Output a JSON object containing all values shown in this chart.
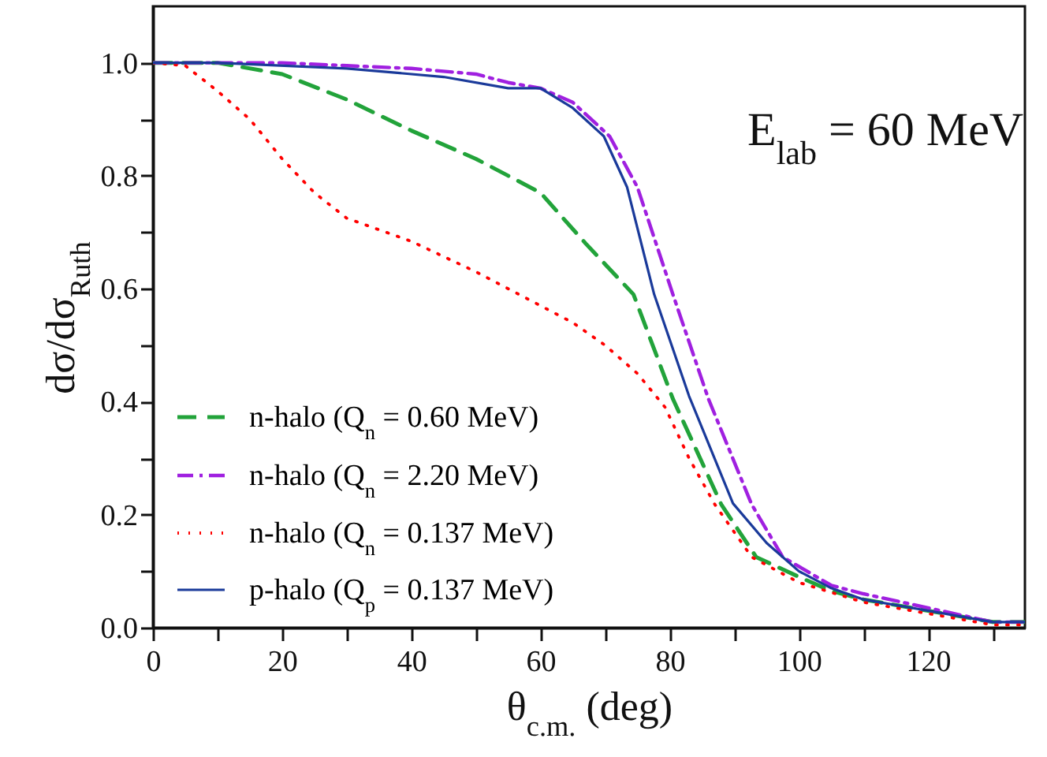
{
  "chart_data": {
    "type": "line",
    "xlabel": "θ$_{c.m.}$ (deg)",
    "ylabel": "dσ/dσ$_{Ruth}$",
    "annotations": [
      "E$_{lab}$ = 60 MeV"
    ],
    "xlim": [
      0,
      135
    ],
    "ylim": [
      0,
      1.1
    ],
    "xticks": [
      0,
      {
        "value": 10,
        "label": null
      },
      20,
      {
        "value": 30,
        "label": null
      },
      40,
      {
        "value": 50,
        "label": null
      },
      60,
      {
        "value": 70,
        "label": null
      },
      80,
      {
        "value": 90,
        "label": null
      },
      100,
      {
        "value": 110,
        "label": null
      },
      120,
      {
        "value": 130,
        "label": null
      }
    ],
    "yticks": [
      {
        "value": 0,
        "label": "0.0"
      },
      {
        "value": 0.1,
        "label": null
      },
      0.2,
      {
        "value": 0.3,
        "label": null
      },
      0.4,
      {
        "value": 0.5,
        "label": null
      },
      0.6,
      {
        "value": 0.7,
        "label": null
      },
      0.8,
      {
        "value": 0.9,
        "label": null
      },
      {
        "value": 1,
        "label": "1.0"
      }
    ],
    "legend": "bottom left",
    "series": [
      {
        "name": "n-halo (Q$_{n}$ = 0.60 MeV)",
        "color": "#22a33a",
        "line_style": "dashed",
        "x": [
          0,
          10,
          20,
          30,
          40,
          50,
          55,
          60,
          67,
          74.4,
          80.5,
          88,
          93.4,
          100,
          105,
          110,
          120,
          130,
          135
        ],
        "values": [
          1,
          1,
          0.98,
          0.935,
          0.88,
          0.83,
          0.8,
          0.77,
          0.68,
          0.59,
          0.405,
          0.218,
          0.125,
          0.09,
          0.065,
          0.05,
          0.03,
          0.01,
          0.01
        ]
      },
      {
        "name": "n-halo (Q$_{n}$ = 2.20 MeV)",
        "color": "#a020e0",
        "line_style": "dashdot",
        "x": [
          0,
          20,
          30,
          40,
          50,
          55,
          60,
          65,
          70.7,
          75,
          80.5,
          86,
          92.7,
          97.5,
          105,
          110,
          120,
          130,
          135
        ],
        "values": [
          1,
          1,
          0.995,
          0.99,
          0.98,
          0.965,
          0.955,
          0.93,
          0.87,
          0.78,
          0.59,
          0.405,
          0.218,
          0.125,
          0.075,
          0.06,
          0.035,
          0.01,
          0.01
        ]
      },
      {
        "name": "n-halo (Q$_{n}$ = 0.137 MeV)",
        "color": "#ff0000",
        "line_style": "dotted",
        "x": [
          0,
          5,
          10,
          15,
          20,
          25,
          30,
          40,
          50,
          60,
          65,
          70,
          75,
          79.3,
          83,
          87,
          92.7,
          100,
          110,
          120,
          130,
          135
        ],
        "values": [
          1,
          0.995,
          0.95,
          0.9,
          0.83,
          0.77,
          0.725,
          0.684,
          0.63,
          0.57,
          0.54,
          0.5,
          0.45,
          0.39,
          0.3,
          0.218,
          0.125,
          0.08,
          0.045,
          0.025,
          0.005,
          0.005
        ]
      },
      {
        "name": "p-halo (Q$_{p}$ = 0.137 MeV)",
        "color": "#1a3a9a",
        "line_style": "solid",
        "x": [
          0,
          10,
          30,
          45,
          55,
          60,
          65,
          69.8,
          73.4,
          77.6,
          83,
          89.8,
          95,
          100,
          105,
          110,
          120,
          130,
          135
        ],
        "values": [
          1,
          1,
          0.99,
          0.975,
          0.955,
          0.955,
          0.92,
          0.87,
          0.78,
          0.59,
          0.41,
          0.22,
          0.15,
          0.1,
          0.07,
          0.05,
          0.03,
          0.01,
          0.01
        ]
      }
    ]
  }
}
